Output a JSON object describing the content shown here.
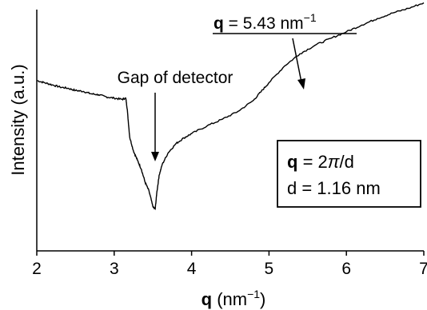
{
  "chart_data": {
    "type": "line",
    "xlabel_bold": "q",
    "xlabel_rest": " (nm",
    "xlabel_sup": "−1",
    "xlabel_close": ")",
    "ylabel": "Intensity (a.u.)",
    "xlim": [
      2,
      7
    ],
    "ylim": [
      0,
      100
    ],
    "xticks": [
      "2",
      "3",
      "4",
      "5",
      "6",
      "7"
    ],
    "y_tick_labels": false,
    "grid": false,
    "series": [
      {
        "x": [
          2.0,
          2.1,
          2.2,
          2.3,
          2.4,
          2.5,
          2.6,
          2.7,
          2.8,
          2.9,
          3.0,
          3.1,
          3.15,
          3.17,
          3.2,
          3.25,
          3.3,
          3.35,
          3.4,
          3.45,
          3.5,
          3.53,
          3.55,
          3.58,
          3.62,
          3.7,
          3.8,
          3.9,
          4.0,
          4.2,
          4.4,
          4.6,
          4.8,
          4.9,
          5.0,
          5.2,
          5.4,
          5.6,
          5.8,
          6.0,
          6.2,
          6.4,
          6.6,
          6.8,
          7.0
        ],
        "y": [
          70.6,
          69.7,
          68.8,
          67.9,
          67.4,
          66.5,
          66.1,
          65.1,
          64.7,
          63.8,
          63.3,
          62.8,
          63.3,
          58.3,
          47.2,
          41.3,
          37.6,
          33.9,
          28.4,
          24.8,
          18.3,
          17.4,
          23.9,
          31.2,
          35.8,
          40.8,
          44.5,
          46.8,
          48.6,
          51.8,
          54.6,
          57.8,
          62.4,
          66.1,
          69.7,
          76.6,
          81.7,
          85.3,
          88.1,
          90.8,
          93.6,
          96.3,
          98.6,
          100.5,
          102.8
        ]
      }
    ],
    "annotations": {
      "gap_text": "Gap of detector",
      "peak_label_bold": "q",
      "peak_label_rest": " = 5.43 nm",
      "peak_label_sup": "−1",
      "peak_x": 5.43,
      "gap_x": 3.53,
      "box_line1_bold": "q",
      "box_line1_rest": " = 2",
      "box_line1_pi": "π",
      "box_line1_tail": "/d",
      "box_line2": "d = 1.16 nm"
    }
  }
}
